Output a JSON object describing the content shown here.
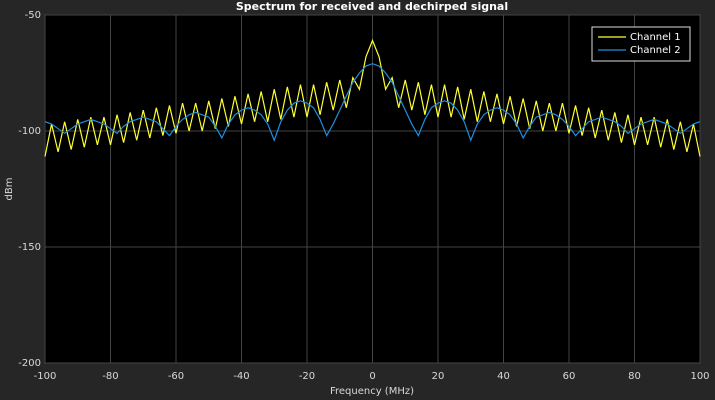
{
  "chart_data": {
    "type": "line",
    "title": "Spectrum for received and dechirped signal",
    "xlabel": "Frequency (MHz)",
    "ylabel": "dBm",
    "x": [
      -100,
      -98,
      -96,
      -94,
      -92,
      -90,
      -88,
      -86,
      -84,
      -82,
      -80,
      -78,
      -76,
      -74,
      -72,
      -70,
      -68,
      -66,
      -64,
      -62,
      -60,
      -58,
      -56,
      -54,
      -52,
      -50,
      -48,
      -46,
      -44,
      -42,
      -40,
      -38,
      -36,
      -34,
      -32,
      -30,
      -28,
      -26,
      -24,
      -22,
      -20,
      -18,
      -16,
      -14,
      -12,
      -10,
      -8,
      -6,
      -4,
      -2,
      0,
      2,
      4,
      6,
      8,
      10,
      12,
      14,
      16,
      18,
      20,
      22,
      24,
      26,
      28,
      30,
      32,
      34,
      36,
      38,
      40,
      42,
      44,
      46,
      48,
      50,
      52,
      54,
      56,
      58,
      60,
      62,
      64,
      66,
      68,
      70,
      72,
      74,
      76,
      78,
      80,
      82,
      84,
      86,
      88,
      90,
      92,
      94,
      96,
      98,
      100
    ],
    "series": [
      {
        "name": "Channel 1",
        "color": "#ffff33",
        "values": [
          -111,
          -97,
          -109,
          -96,
          -108,
          -95,
          -107,
          -94,
          -106,
          -94,
          -106,
          -93,
          -105,
          -92,
          -104,
          -91,
          -103,
          -90,
          -102,
          -89,
          -101,
          -88,
          -100,
          -88,
          -100,
          -87,
          -99,
          -86,
          -98,
          -85,
          -97,
          -84,
          -96,
          -83,
          -96,
          -82,
          -95,
          -81,
          -94,
          -80,
          -94,
          -80,
          -93,
          -79,
          -91,
          -78,
          -90,
          -77,
          -82,
          -68,
          -61,
          -68,
          -82,
          -77,
          -90,
          -78,
          -91,
          -79,
          -93,
          -80,
          -94,
          -80,
          -94,
          -81,
          -95,
          -82,
          -96,
          -83,
          -96,
          -84,
          -97,
          -85,
          -98,
          -86,
          -99,
          -87,
          -100,
          -88,
          -100,
          -88,
          -101,
          -89,
          -102,
          -90,
          -103,
          -91,
          -104,
          -92,
          -105,
          -93,
          -106,
          -94,
          -106,
          -94,
          -107,
          -95,
          -108,
          -96,
          -109,
          -97,
          -111
        ]
      },
      {
        "name": "Channel 2",
        "color": "#1f8fe0",
        "values": [
          -96,
          -97,
          -99,
          -101,
          -99,
          -97,
          -96,
          -95,
          -96,
          -97,
          -99,
          -101,
          -98,
          -96,
          -95,
          -94,
          -95,
          -96,
          -99,
          -102,
          -98,
          -95,
          -93,
          -92,
          -93,
          -94,
          -98,
          -103,
          -97,
          -93,
          -91,
          -90,
          -91,
          -93,
          -97,
          -104,
          -96,
          -91,
          -88,
          -87,
          -88,
          -90,
          -95,
          -102,
          -97,
          -91,
          -85,
          -79,
          -75,
          -72,
          -71,
          -72,
          -75,
          -79,
          -85,
          -91,
          -97,
          -102,
          -95,
          -90,
          -88,
          -87,
          -88,
          -91,
          -96,
          -104,
          -97,
          -93,
          -91,
          -90,
          -91,
          -93,
          -97,
          -103,
          -98,
          -94,
          -93,
          -92,
          -93,
          -95,
          -98,
          -102,
          -99,
          -96,
          -95,
          -94,
          -95,
          -96,
          -98,
          -101,
          -99,
          -97,
          -96,
          -95,
          -96,
          -97,
          -99,
          -101,
          -99,
          -97,
          -96
        ]
      }
    ],
    "xlim": [
      -100,
      100
    ],
    "ylim": [
      -200,
      -50
    ],
    "xticks": [
      -100,
      -80,
      -60,
      -40,
      -20,
      0,
      20,
      40,
      60,
      80,
      100
    ],
    "yticks": [
      -200,
      -150,
      -100,
      -50
    ],
    "grid": true,
    "legend": "top-right"
  }
}
